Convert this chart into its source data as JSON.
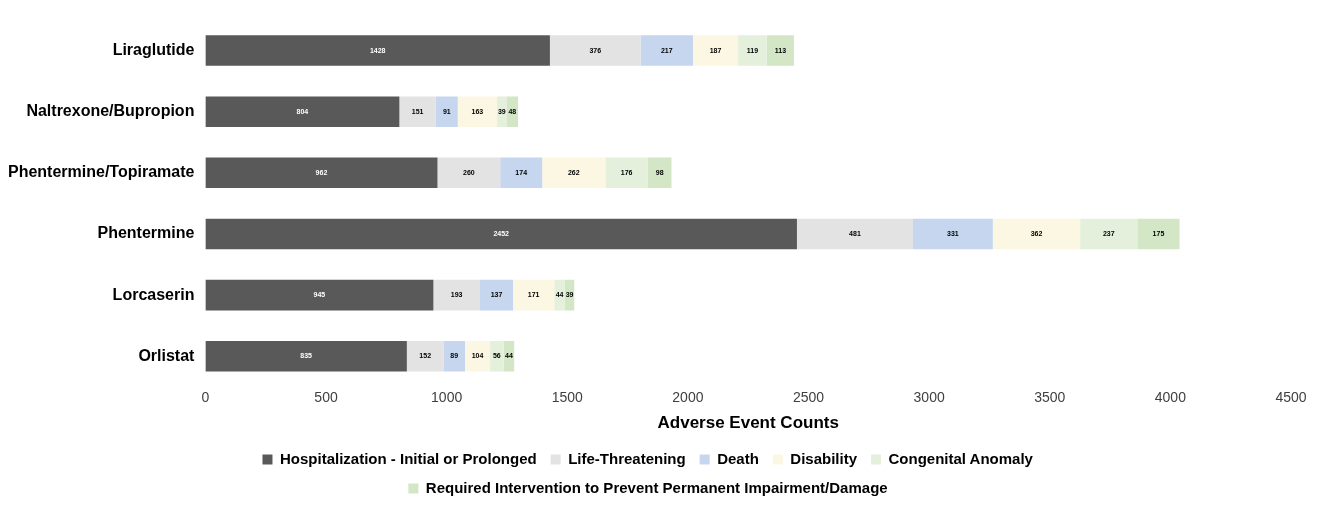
{
  "chart_data": {
    "type": "bar",
    "orientation": "horizontal",
    "stacked": true,
    "xlabel": "Adverse Event Counts",
    "categories": [
      "Liraglutide",
      "Naltrexone/Bupropion",
      "Phentermine/Topiramate",
      "Phentermine",
      "Lorcaserin",
      "Orlistat"
    ],
    "series": [
      {
        "name": "Hospitalization - Initial or Prolonged",
        "color": "#595959",
        "values": [
          1428,
          804,
          962,
          2452,
          945,
          835
        ]
      },
      {
        "name": "Life-Threatening",
        "color": "#e3e3e3",
        "values": [
          376,
          151,
          260,
          481,
          193,
          152
        ]
      },
      {
        "name": "Death",
        "color": "#c6d6ee",
        "values": [
          217,
          91,
          174,
          331,
          137,
          89
        ]
      },
      {
        "name": "Disability",
        "color": "#fcf7e3",
        "values": [
          187,
          163,
          262,
          362,
          171,
          104
        ]
      },
      {
        "name": "Congenital Anomaly",
        "color": "#e4efdc",
        "values": [
          119,
          39,
          176,
          237,
          44,
          56
        ]
      },
      {
        "name": "Required Intervention to Prevent Permanent Impairment/Damage",
        "color": "#d3e6c6",
        "values": [
          113,
          48,
          98,
          175,
          39,
          44
        ]
      }
    ],
    "xlim": [
      0,
      4500
    ],
    "xticks": [
      0,
      500,
      1000,
      1500,
      2000,
      2500,
      3000,
      3500,
      4000,
      4500
    ],
    "grid": false,
    "legend": "bottom",
    "data_labels": true
  }
}
